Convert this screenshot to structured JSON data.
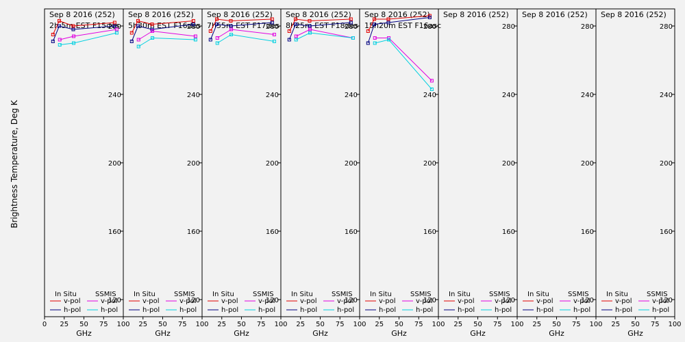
{
  "ylabel": "Brightness Temperature, Deg K",
  "xlabel": "GHz",
  "legend": {
    "in_situ": "In Situ",
    "ssmis": "SSMIS",
    "vpol": "v-pol",
    "hpol": "h-pol"
  },
  "colors": {
    "insitu_v": "#e00000",
    "insitu_h": "#000080",
    "ssmis_v": "#e000e0",
    "ssmis_h": "#00d0e0"
  },
  "chart_data": [
    {
      "type": "line",
      "title": "Sep 8 2016 (252)",
      "subtitle": "2h 5m  EST F15des",
      "xlim": [
        0,
        100
      ],
      "ylim": [
        110,
        290
      ],
      "xticks": [
        0,
        25,
        50,
        75,
        100
      ],
      "yticks": [
        120,
        160,
        200,
        240,
        280
      ],
      "series": [
        {
          "name": "In Situ v-pol",
          "x": [
            10.7,
            18.7,
            36.5,
            89
          ],
          "y": [
            275,
            283,
            280,
            282
          ]
        },
        {
          "name": "In Situ h-pol",
          "x": [
            10.7,
            18.7,
            36.5,
            89
          ],
          "y": [
            271,
            280,
            278,
            280
          ]
        },
        {
          "name": "SSMIS v-pol",
          "x": [
            19.35,
            37,
            91.65
          ],
          "y": [
            272,
            274,
            278
          ]
        },
        {
          "name": "SSMIS h-pol",
          "x": [
            19.35,
            37,
            91.65
          ],
          "y": [
            269,
            270,
            276
          ]
        }
      ]
    },
    {
      "type": "line",
      "title": "Sep 8 2016 (252)",
      "subtitle": "5h30m  EST F16des",
      "xlim": [
        0,
        100
      ],
      "ylim": [
        110,
        290
      ],
      "xticks": [
        0,
        25,
        50,
        75,
        100
      ],
      "yticks": [
        120,
        160,
        200,
        240,
        280
      ],
      "series": [
        {
          "name": "In Situ v-pol",
          "x": [
            10.7,
            18.7,
            36.5,
            89
          ],
          "y": [
            276,
            283,
            281,
            283
          ]
        },
        {
          "name": "In Situ h-pol",
          "x": [
            10.7,
            18.7,
            36.5,
            89
          ],
          "y": [
            271,
            280,
            278,
            281
          ]
        },
        {
          "name": "SSMIS v-pol",
          "x": [
            19.35,
            37,
            91.65
          ],
          "y": [
            272,
            277,
            274
          ]
        },
        {
          "name": "SSMIS h-pol",
          "x": [
            19.35,
            37,
            91.65
          ],
          "y": [
            268,
            273,
            272
          ]
        }
      ]
    },
    {
      "type": "line",
      "title": "Sep 8 2016 (252)",
      "subtitle": "7h55m  EST F17des",
      "xlim": [
        0,
        100
      ],
      "ylim": [
        110,
        290
      ],
      "xticks": [
        0,
        25,
        50,
        75,
        100
      ],
      "yticks": [
        120,
        160,
        200,
        240,
        280
      ],
      "series": [
        {
          "name": "In Situ v-pol",
          "x": [
            10.7,
            18.7,
            36.5,
            89
          ],
          "y": [
            277,
            284,
            283,
            284
          ]
        },
        {
          "name": "In Situ h-pol",
          "x": [
            10.7,
            18.7,
            36.5,
            89
          ],
          "y": [
            272,
            281,
            280,
            282
          ]
        },
        {
          "name": "SSMIS v-pol",
          "x": [
            19.35,
            37,
            91.65
          ],
          "y": [
            273,
            278,
            275
          ]
        },
        {
          "name": "SSMIS h-pol",
          "x": [
            19.35,
            37,
            91.65
          ],
          "y": [
            270,
            275,
            271
          ]
        }
      ]
    },
    {
      "type": "line",
      "title": "Sep 8 2016 (252)",
      "subtitle": "8h25m  EST F18des",
      "xlim": [
        0,
        100
      ],
      "ylim": [
        110,
        290
      ],
      "xticks": [
        0,
        25,
        50,
        75,
        100
      ],
      "yticks": [
        120,
        160,
        200,
        240,
        280
      ],
      "series": [
        {
          "name": "In Situ v-pol",
          "x": [
            10.7,
            18.7,
            36.5,
            89
          ],
          "y": [
            277,
            284,
            283,
            284
          ]
        },
        {
          "name": "In Situ h-pol",
          "x": [
            10.7,
            18.7,
            36.5,
            89
          ],
          "y": [
            272,
            281,
            280,
            282
          ]
        },
        {
          "name": "SSMIS v-pol",
          "x": [
            19.35,
            37,
            91.65
          ],
          "y": [
            274,
            278,
            273
          ]
        },
        {
          "name": "SSMIS h-pol",
          "x": [
            19.35,
            37,
            91.65
          ],
          "y": [
            272,
            276,
            273
          ]
        }
      ]
    },
    {
      "type": "line",
      "title": "Sep 8 2016 (252)",
      "subtitle": "15h20m  EST F16asc",
      "xlim": [
        0,
        100
      ],
      "ylim": [
        110,
        290
      ],
      "xticks": [
        0,
        25,
        50,
        75,
        100
      ],
      "yticks": [
        120,
        160,
        200,
        240,
        280
      ],
      "series": [
        {
          "name": "In Situ v-pol",
          "x": [
            10.7,
            18.7,
            36.5,
            89
          ],
          "y": [
            277,
            284,
            284,
            286
          ]
        },
        {
          "name": "In Situ h-pol",
          "x": [
            10.7,
            18.7,
            36.5,
            89
          ],
          "y": [
            270,
            281,
            282,
            285
          ]
        },
        {
          "name": "SSMIS v-pol",
          "x": [
            19.35,
            37,
            91.65
          ],
          "y": [
            273,
            273,
            248
          ]
        },
        {
          "name": "SSMIS h-pol",
          "x": [
            19.35,
            37,
            91.65
          ],
          "y": [
            270,
            272,
            243
          ]
        }
      ]
    },
    {
      "type": "line",
      "title": "Sep 8 2016 (252)",
      "subtitle": "",
      "xlim": [
        0,
        100
      ],
      "ylim": [
        110,
        290
      ],
      "xticks": [
        0,
        25,
        50,
        75,
        100
      ],
      "yticks": [
        120,
        160,
        200,
        240,
        280
      ],
      "series": []
    },
    {
      "type": "line",
      "title": "Sep 8 2016 (252)",
      "subtitle": "",
      "xlim": [
        0,
        100
      ],
      "ylim": [
        110,
        290
      ],
      "xticks": [
        0,
        25,
        50,
        75,
        100
      ],
      "yticks": [
        120,
        160,
        200,
        240,
        280
      ],
      "series": []
    },
    {
      "type": "line",
      "title": "Sep 8 2016 (252)",
      "subtitle": "",
      "xlim": [
        0,
        100
      ],
      "ylim": [
        110,
        290
      ],
      "xticks": [
        0,
        25,
        50,
        75,
        100
      ],
      "yticks": [
        120,
        160,
        200,
        240,
        280
      ],
      "series": []
    }
  ]
}
